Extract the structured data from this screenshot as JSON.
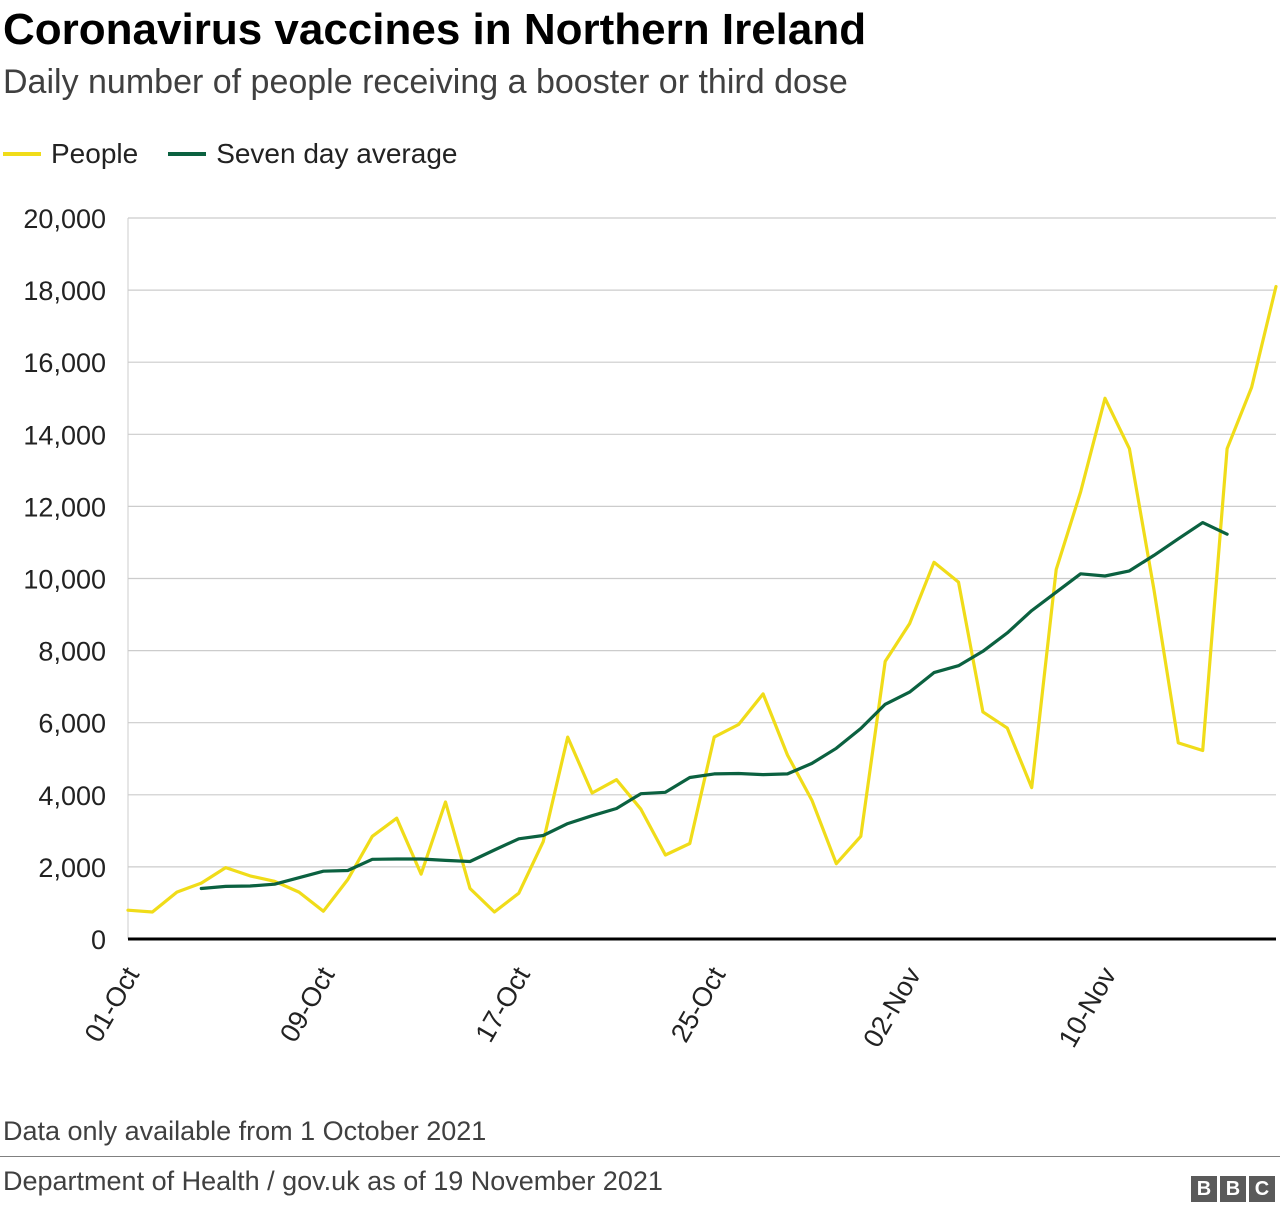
{
  "title": "Coronavirus vaccines in Northern Ireland",
  "subtitle": "Daily number of people receiving a booster or third dose",
  "legend": [
    {
      "label": "People",
      "color": "#f0dc19"
    },
    {
      "label": "Seven day average",
      "color": "#0b6140"
    }
  ],
  "note": "Data only available from 1 October 2021",
  "source": "Department of Health / gov.uk as of 19 November 2021",
  "logo": {
    "letters": [
      "B",
      "B",
      "C"
    ]
  },
  "chart_data": {
    "type": "line",
    "title": "Coronavirus vaccines in Northern Ireland",
    "subtitle": "Daily number of people receiving a booster or third dose",
    "xlabel": "",
    "ylabel": "",
    "ylim": [
      0,
      20000
    ],
    "y_ticks": [
      0,
      2000,
      4000,
      6000,
      8000,
      10000,
      12000,
      14000,
      16000,
      18000,
      20000
    ],
    "y_tick_labels": [
      "0",
      "2,000",
      "4,000",
      "6,000",
      "8,000",
      "10,000",
      "12,000",
      "14,000",
      "16,000",
      "18,000",
      "20,000"
    ],
    "x_tick_labels": [
      "01-Oct",
      "09-Oct",
      "17-Oct",
      "25-Oct",
      "02-Nov",
      "10-Nov"
    ],
    "x_tick_positions": [
      0,
      8,
      16,
      24,
      32,
      40
    ],
    "grid": true,
    "legend_position": "top-left",
    "x": [
      "01-Oct",
      "02-Oct",
      "03-Oct",
      "04-Oct",
      "05-Oct",
      "06-Oct",
      "07-Oct",
      "08-Oct",
      "09-Oct",
      "10-Oct",
      "11-Oct",
      "12-Oct",
      "13-Oct",
      "14-Oct",
      "15-Oct",
      "16-Oct",
      "17-Oct",
      "18-Oct",
      "19-Oct",
      "20-Oct",
      "21-Oct",
      "22-Oct",
      "23-Oct",
      "24-Oct",
      "25-Oct",
      "26-Oct",
      "27-Oct",
      "28-Oct",
      "29-Oct",
      "30-Oct",
      "31-Oct",
      "01-Nov",
      "02-Nov",
      "03-Nov",
      "04-Nov",
      "05-Nov",
      "06-Nov",
      "07-Nov",
      "08-Nov",
      "09-Nov",
      "10-Nov",
      "11-Nov",
      "12-Nov",
      "13-Nov",
      "14-Nov",
      "15-Nov",
      "16-Nov",
      "17-Nov"
    ],
    "series": [
      {
        "name": "People",
        "color": "#f0dc19",
        "values": [
          800,
          750,
          1300,
          1550,
          1980,
          1750,
          1600,
          1300,
          770,
          1650,
          2850,
          3350,
          1800,
          3800,
          1400,
          750,
          1270,
          2700,
          5600,
          4050,
          4420,
          3600,
          2330,
          2650,
          5600,
          5950,
          6800,
          5100,
          3850,
          2090,
          2850,
          7700,
          8750,
          10450,
          9900,
          6300,
          5850,
          4200,
          10250,
          12400,
          15000,
          13600,
          9700,
          5440,
          5230,
          13600,
          15300,
          18100
        ]
      },
      {
        "name": "Seven day average",
        "color": "#0b6140",
        "values": [
          null,
          null,
          null,
          1400,
          1460,
          1470,
          1520,
          1700,
          1880,
          1900,
          2210,
          2220,
          2220,
          2180,
          2150,
          2470,
          2780,
          2870,
          3200,
          3420,
          3620,
          4030,
          4070,
          4480,
          4580,
          4590,
          4560,
          4580,
          4870,
          5290,
          5840,
          6510,
          6850,
          7390,
          7580,
          7980,
          8490,
          9110,
          9620,
          10130,
          10070,
          10210,
          10640,
          11100,
          11550,
          11230,
          null,
          null
        ]
      }
    ]
  }
}
